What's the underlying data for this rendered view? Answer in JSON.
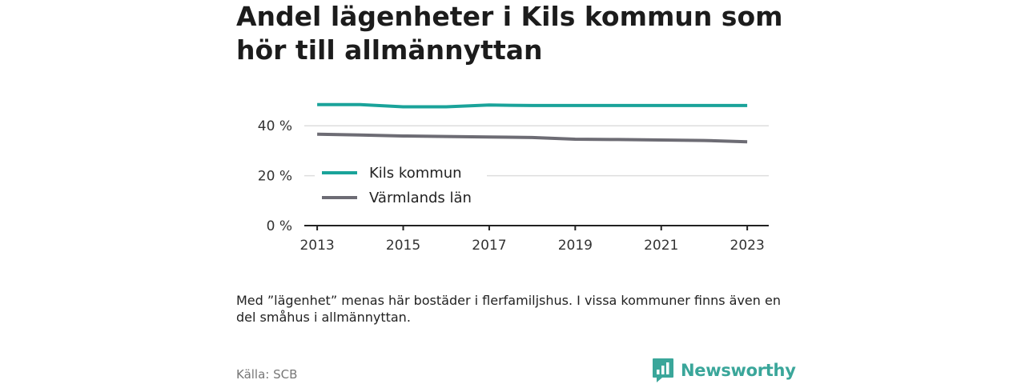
{
  "title": "Andel lägenheter i Kils kommun som hör till allmännyttan",
  "note": "Med ”lägenhet” menas här bostäder i flerfamiljshus. I vissa kommuner finns även en del småhus i allmännyttan.",
  "source": "Källa: SCB",
  "brand": {
    "name": "Newsworthy",
    "color": "#3aa69a",
    "icon": "bar-chart-speech-bubble-icon"
  },
  "chart_data": {
    "type": "line",
    "x": [
      2013,
      2014,
      2015,
      2016,
      2017,
      2018,
      2019,
      2020,
      2021,
      2022,
      2023
    ],
    "x_tick_labels": [
      "2013",
      "2015",
      "2017",
      "2019",
      "2021",
      "2023"
    ],
    "y_tick_labels": [
      "0 %",
      "20 %",
      "40 %"
    ],
    "y_ticks": [
      0,
      20,
      40
    ],
    "ylim": [
      0,
      50
    ],
    "xlim": [
      2012.7,
      2023.5
    ],
    "grid": true,
    "legend_position": "left",
    "series": [
      {
        "name": "Kils kommun",
        "color": "#1aa39a",
        "values": [
          48.5,
          48.5,
          47.6,
          47.6,
          48.3,
          48.1,
          48.1,
          48.1,
          48.1,
          48.1,
          48.1
        ]
      },
      {
        "name": "Värmlands län",
        "color": "#6d6c74",
        "values": [
          36.6,
          36.3,
          35.9,
          35.7,
          35.5,
          35.3,
          34.6,
          34.5,
          34.3,
          34.1,
          33.6
        ]
      }
    ]
  }
}
